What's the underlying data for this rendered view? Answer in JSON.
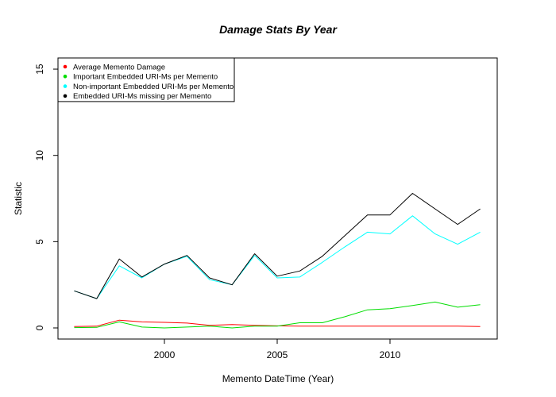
{
  "chart_data": {
    "type": "line",
    "title": "Damage Stats By Year",
    "xlabel": "Memento DateTime (Year)",
    "ylabel": "Statistic",
    "xlim": [
      1996,
      2014
    ],
    "ylim": [
      0,
      15
    ],
    "x_ticks": [
      2000,
      2005,
      2010
    ],
    "y_ticks": [
      0,
      5,
      10,
      15
    ],
    "grid": false,
    "legend_position": "top-left",
    "x": [
      1996,
      1997,
      1998,
      1999,
      2000,
      2001,
      2002,
      2003,
      2004,
      2005,
      2006,
      2007,
      2008,
      2009,
      2010,
      2011,
      2012,
      2013,
      2014
    ],
    "series": [
      {
        "name": "Average Memento Damage",
        "color": "#ff0000",
        "values": [
          0.08,
          0.1,
          0.45,
          0.35,
          0.32,
          0.28,
          0.15,
          0.2,
          0.15,
          0.12,
          0.1,
          0.1,
          0.1,
          0.1,
          0.1,
          0.1,
          0.1,
          0.1,
          0.08
        ]
      },
      {
        "name": "Important Embedded URI-Ms per Memento",
        "color": "#00dd00",
        "values": [
          0.02,
          0.03,
          0.35,
          0.05,
          0.0,
          0.05,
          0.1,
          0.0,
          0.1,
          0.1,
          0.3,
          0.3,
          0.65,
          1.05,
          1.12,
          1.3,
          1.5,
          1.2,
          1.35
        ]
      },
      {
        "name": "Non-important Embedded URI-Ms per Memento",
        "color": "#00ffff",
        "values": [
          2.15,
          1.7,
          3.6,
          2.9,
          3.7,
          4.15,
          2.8,
          2.5,
          4.2,
          2.9,
          2.95,
          3.8,
          4.7,
          5.55,
          5.45,
          6.5,
          5.45,
          4.85,
          5.55
        ]
      },
      {
        "name": "Embedded URI-Ms missing per Memento",
        "color": "#000000",
        "values": [
          2.15,
          1.7,
          4.0,
          2.95,
          3.7,
          4.2,
          2.9,
          2.5,
          4.3,
          3.0,
          3.3,
          4.15,
          5.35,
          6.55,
          6.55,
          7.8,
          6.9,
          6.0,
          6.9
        ]
      }
    ]
  }
}
